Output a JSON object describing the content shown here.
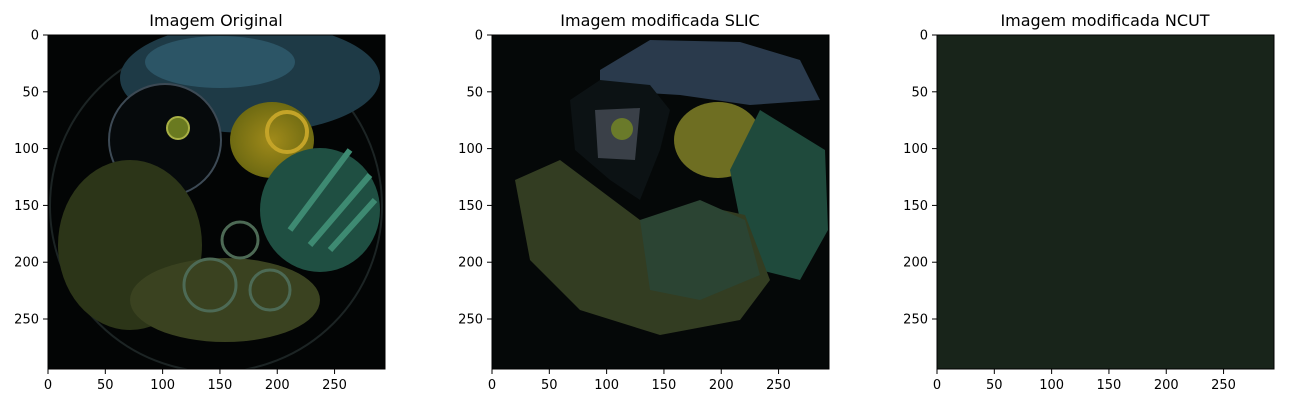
{
  "chart_data": [
    {
      "type": "image",
      "title": "Imagem Original",
      "xticks": [
        0,
        50,
        100,
        150,
        200,
        250
      ],
      "yticks": [
        0,
        50,
        100,
        150,
        200,
        250
      ],
      "xlim": [
        0,
        294
      ],
      "ylim": [
        294,
        0
      ],
      "image_content": "original",
      "background": "#030505"
    },
    {
      "type": "image",
      "title": "Imagem modificada SLIC",
      "xticks": [
        0,
        50,
        100,
        150,
        200,
        250
      ],
      "yticks": [
        0,
        50,
        100,
        150,
        200,
        250
      ],
      "xlim": [
        0,
        294
      ],
      "ylim": [
        294,
        0
      ],
      "image_content": "slic",
      "background": "#050808"
    },
    {
      "type": "image",
      "title": "Imagem modificada NCUT",
      "xticks": [
        0,
        50,
        100,
        150,
        200,
        250
      ],
      "yticks": [
        0,
        50,
        100,
        150,
        200,
        250
      ],
      "xlim": [
        0,
        294
      ],
      "ylim": [
        294,
        0
      ],
      "image_content": "ncut",
      "background": "#18241a"
    }
  ]
}
